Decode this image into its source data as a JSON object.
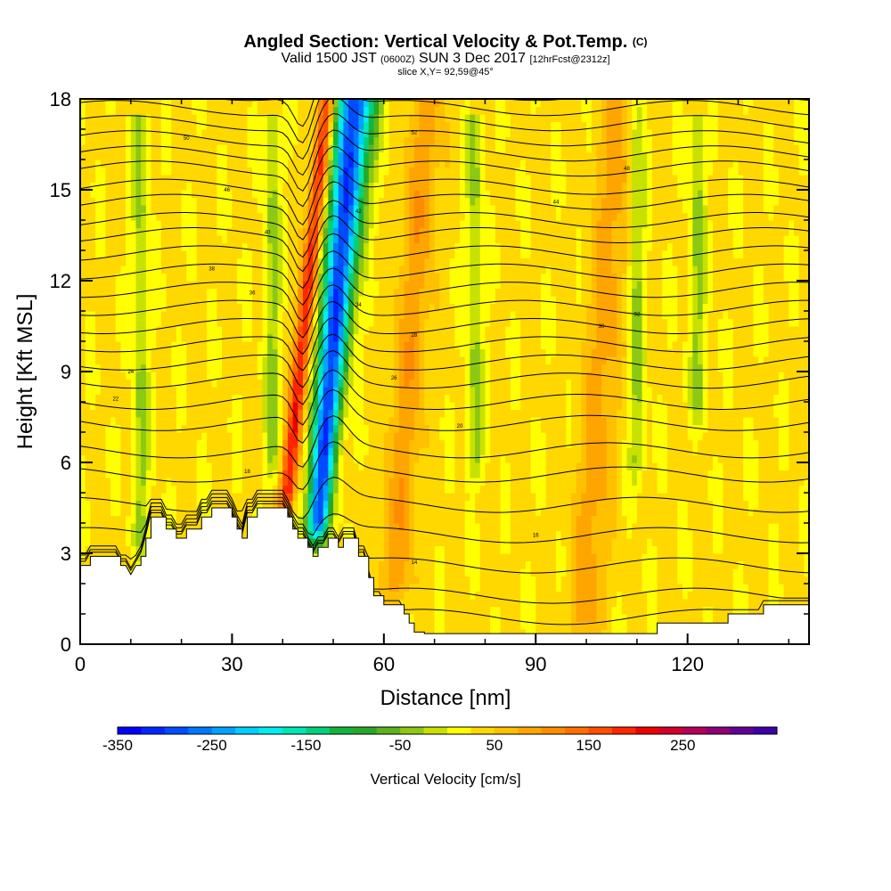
{
  "header": {
    "title": "Angled Section: Vertical Velocity & Pot.Temp.",
    "title_units": "(C)",
    "valid_prefix": "Valid 1500 JST",
    "valid_utc": "(0600Z)",
    "valid_date": "SUN 3 Dec 2017",
    "forecast": "[12hrFcst@2312z]",
    "slice": "slice X,Y= 92,59@45°"
  },
  "chart_data": {
    "type": "heatmap",
    "xlabel": "Distance [nm]",
    "ylabel": "Height [Kft MSL]",
    "xlim": [
      0,
      144
    ],
    "ylim": [
      0,
      18
    ],
    "x_ticks": [
      0,
      30,
      60,
      90,
      120
    ],
    "y_ticks": [
      0,
      3,
      6,
      9,
      12,
      15,
      18
    ],
    "colorbar": {
      "title": "Vertical Velocity [cm/s]",
      "tick_labels": [
        "-350",
        "-250",
        "-150",
        "-50",
        "50",
        "150",
        "250"
      ],
      "tick_values": [
        -350,
        -250,
        -150,
        -50,
        50,
        150,
        250
      ],
      "range": [
        -350,
        350
      ],
      "step": 25,
      "colors": [
        "#0000ff",
        "#0026ff",
        "#004cff",
        "#0077ff",
        "#00a2ff",
        "#00cfff",
        "#00eeee",
        "#00e6b4",
        "#00d27c",
        "#14b43c",
        "#28a828",
        "#5ab41e",
        "#8cc814",
        "#c8e100",
        "#ffff00",
        "#ffd800",
        "#ffc000",
        "#ffa500",
        "#ff8c00",
        "#ff7000",
        "#ff4e00",
        "#ff2600",
        "#ee0000",
        "#d2002a",
        "#b4005a",
        "#8c0078",
        "#640096",
        "#3c00aa"
      ]
    },
    "field_description": "w(x, z) vertical velocity field along the section",
    "features": [
      {
        "kind": "updraft",
        "x": 44,
        "z_bottom": 5,
        "z_top": 18,
        "max": 175
      },
      {
        "kind": "downdraft",
        "x": 50,
        "z_bottom": 4,
        "z_top": 18,
        "min": -325
      },
      {
        "kind": "updraft-band",
        "x": 65,
        "z_bottom": 2,
        "z_top": 18,
        "max": 60
      },
      {
        "kind": "updraft-band",
        "x": 103,
        "z_bottom": 1,
        "z_top": 18,
        "max": 60
      },
      {
        "kind": "downdraft-band",
        "x": 78,
        "z_bottom": 6,
        "z_top": 17,
        "min": -60
      },
      {
        "kind": "downdraft-band",
        "x": 110,
        "z_bottom": 6,
        "z_top": 18,
        "min": -60
      },
      {
        "kind": "downdraft-band",
        "x": 122,
        "z_bottom": 8,
        "z_top": 17,
        "min": -60
      },
      {
        "kind": "downdraft-band",
        "x": 12,
        "z_bottom": 3.5,
        "z_top": 17,
        "min": -60
      },
      {
        "kind": "downdraft-band",
        "x": 38,
        "z_bottom": 6,
        "z_top": 17,
        "min": -60
      }
    ],
    "terrain_kft": [
      [
        0,
        2.6
      ],
      [
        2,
        2.6
      ],
      [
        2,
        2.9
      ],
      [
        8,
        2.9
      ],
      [
        8,
        2.6
      ],
      [
        9,
        2.6
      ],
      [
        10,
        2.3
      ],
      [
        11,
        2.6
      ],
      [
        12,
        2.6
      ],
      [
        12,
        2.9
      ],
      [
        13,
        2.9
      ],
      [
        13,
        3.5
      ],
      [
        14,
        3.5
      ],
      [
        14,
        4.2
      ],
      [
        17,
        4.2
      ],
      [
        17,
        3.8
      ],
      [
        19,
        3.8
      ],
      [
        19,
        3.5
      ],
      [
        21,
        3.5
      ],
      [
        21,
        3.8
      ],
      [
        24,
        3.8
      ],
      [
        24,
        4.2
      ],
      [
        26,
        4.2
      ],
      [
        26,
        4.5
      ],
      [
        30,
        4.5
      ],
      [
        30,
        4.2
      ],
      [
        31,
        4.2
      ],
      [
        31,
        3.8
      ],
      [
        32,
        3.8
      ],
      [
        32,
        3.5
      ],
      [
        33,
        3.5
      ],
      [
        33,
        4.2
      ],
      [
        35,
        4.2
      ],
      [
        35,
        4.5
      ],
      [
        41,
        4.5
      ],
      [
        41,
        4.2
      ],
      [
        42,
        4.2
      ],
      [
        42,
        3.8
      ],
      [
        43,
        3.8
      ],
      [
        43,
        3.5
      ],
      [
        45,
        3.5
      ],
      [
        45,
        3.2
      ],
      [
        46,
        3.2
      ],
      [
        46,
        2.9
      ],
      [
        47,
        2.9
      ],
      [
        47,
        3.2
      ],
      [
        49,
        3.2
      ],
      [
        49,
        3.5
      ],
      [
        51,
        3.5
      ],
      [
        51,
        3.2
      ],
      [
        52,
        3.2
      ],
      [
        52,
        3.5
      ],
      [
        55,
        3.5
      ],
      [
        55,
        2.9
      ],
      [
        57,
        2.9
      ],
      [
        57,
        2.2
      ],
      [
        58,
        2.2
      ],
      [
        58,
        1.6
      ],
      [
        60,
        1.6
      ],
      [
        60,
        1.3
      ],
      [
        64,
        1.3
      ],
      [
        64,
        1.0
      ],
      [
        65,
        1.0
      ],
      [
        65,
        0.7
      ],
      [
        66,
        0.7
      ],
      [
        66,
        0.4
      ],
      [
        68,
        0.4
      ],
      [
        68,
        0.35
      ],
      [
        114,
        0.35
      ],
      [
        114,
        0.7
      ],
      [
        128,
        0.7
      ],
      [
        128,
        1.0
      ],
      [
        135,
        1.0
      ],
      [
        135,
        1.3
      ],
      [
        144,
        1.3
      ]
    ],
    "theta_contours": {
      "units": "C",
      "levels": [
        12,
        14,
        16,
        18,
        20,
        22,
        24,
        26,
        28,
        30,
        32,
        34,
        36,
        38,
        40,
        42,
        44,
        46,
        48,
        50,
        52,
        54,
        56,
        58,
        60,
        62,
        64
      ],
      "base_heights_kft": [
        0.9,
        1.6,
        2.6,
        3.6,
        4.6,
        5.6,
        6.4,
        7.3,
        8.0,
        8.7,
        9.3,
        9.9,
        10.5,
        11.1,
        11.7,
        12.3,
        12.9,
        13.5,
        14.0,
        14.6,
        15.1,
        15.7,
        16.2,
        16.7,
        17.2,
        17.7,
        18.2
      ],
      "visible_labels": [
        {
          "text": "14",
          "x": 66,
          "z": 2.7
        },
        {
          "text": "16",
          "x": 90,
          "z": 3.6
        },
        {
          "text": "18",
          "x": 33,
          "z": 5.7
        },
        {
          "text": "20",
          "x": 75,
          "z": 7.2
        },
        {
          "text": "22",
          "x": 7,
          "z": 8.1
        },
        {
          "text": "24",
          "x": 10,
          "z": 9.0
        },
        {
          "text": "26",
          "x": 62,
          "z": 8.8
        },
        {
          "text": "28",
          "x": 66,
          "z": 10.2
        },
        {
          "text": "30",
          "x": 103,
          "z": 10.5
        },
        {
          "text": "32",
          "x": 110,
          "z": 10.9
        },
        {
          "text": "34",
          "x": 55,
          "z": 11.2
        },
        {
          "text": "36",
          "x": 34,
          "z": 11.6
        },
        {
          "text": "38",
          "x": 26,
          "z": 12.4
        },
        {
          "text": "40",
          "x": 37,
          "z": 13.6
        },
        {
          "text": "42",
          "x": 55,
          "z": 14.3
        },
        {
          "text": "44",
          "x": 94,
          "z": 14.6
        },
        {
          "text": "46",
          "x": 29,
          "z": 15.0
        },
        {
          "text": "48",
          "x": 108,
          "z": 15.7
        },
        {
          "text": "50",
          "x": 21,
          "z": 16.7
        },
        {
          "text": "52",
          "x": 66,
          "z": 16.9
        }
      ]
    }
  }
}
